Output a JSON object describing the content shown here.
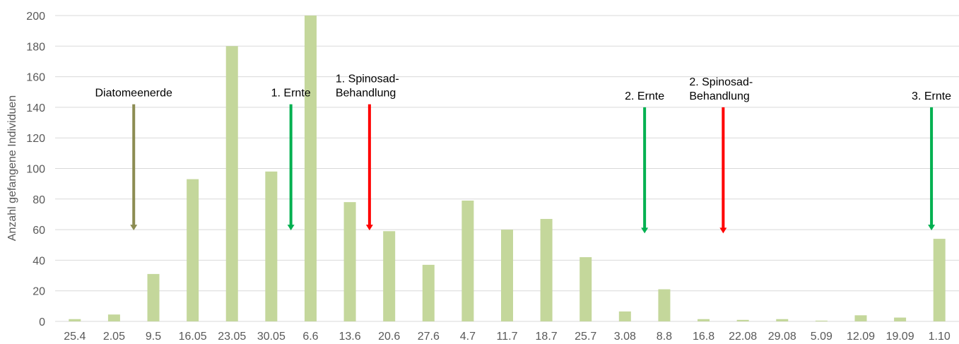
{
  "chart_data": {
    "type": "bar",
    "title": "",
    "xlabel": "",
    "ylabel": "Anzahl gefangene Individuen",
    "ylim": [
      0,
      200
    ],
    "yticks": [
      0,
      20,
      40,
      60,
      80,
      100,
      120,
      140,
      160,
      180,
      200
    ],
    "grid": true,
    "categories": [
      "25.4",
      "2.05",
      "9.5",
      "16.05",
      "23.05",
      "30.05",
      "6.6",
      "13.6",
      "20.6",
      "27.6",
      "4.7",
      "11.7",
      "18.7",
      "25.7",
      "3.08",
      "8.8",
      "16.8",
      "22.08",
      "29.08",
      "5.09",
      "12.09",
      "19.09",
      "1.10"
    ],
    "values": [
      1.5,
      4.5,
      31,
      93,
      180,
      98,
      200,
      78,
      59,
      37,
      79,
      60,
      67,
      42,
      6.5,
      21,
      1.5,
      1,
      1.5,
      0.5,
      4,
      2.5,
      54
    ],
    "colors": {
      "bar": "#c4d79b",
      "grid": "#d9d9d9",
      "axis_text": "#595959",
      "annotation_text": "#000000"
    },
    "annotations": [
      {
        "lines": [
          "Diatomeenerde"
        ],
        "category_index": 1.5,
        "from": 142,
        "to": 60,
        "color": "#8c8c52"
      },
      {
        "lines": [
          "1. Ernte"
        ],
        "category_index": 5.5,
        "from": 142,
        "to": 60,
        "color": "#00b050"
      },
      {
        "lines": [
          "1. Spinosad-",
          "Behandlung"
        ],
        "category_index": 7.5,
        "from": 142,
        "to": 60,
        "color": "#ff0000"
      },
      {
        "lines": [
          "2. Ernte"
        ],
        "category_index": 14.5,
        "from": 140,
        "to": 58,
        "color": "#00b050"
      },
      {
        "lines": [
          "2. Spinosad-",
          "Behandlung"
        ],
        "category_index": 16.5,
        "from": 140,
        "to": 58,
        "color": "#ff0000"
      },
      {
        "lines": [
          "3. Ernte"
        ],
        "category_index": 21.8,
        "from": 140,
        "to": 60,
        "color": "#00b050"
      }
    ]
  }
}
